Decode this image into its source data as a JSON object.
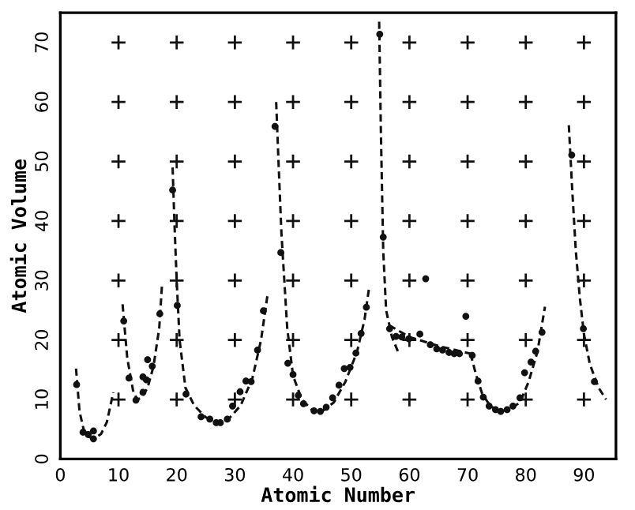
{
  "chart_data": {
    "type": "scatter",
    "xlabel": "Atomic Number",
    "ylabel": "Atomic Volume",
    "xlim": [
      0,
      95.5
    ],
    "ylim": [
      0,
      75
    ],
    "xticks": [
      0,
      10,
      20,
      30,
      40,
      50,
      60,
      70,
      80,
      90
    ],
    "yticks": [
      0,
      10,
      20,
      30,
      40,
      50,
      60,
      70
    ],
    "series": [
      {
        "type": "scatter",
        "color": "#111111",
        "marker": "cross",
        "x": [
          10,
          10,
          10,
          10,
          10,
          10,
          10,
          20,
          20,
          20,
          20,
          20,
          20,
          20,
          30,
          30,
          30,
          30,
          30,
          30,
          30,
          40,
          40,
          40,
          40,
          40,
          40,
          40,
          50,
          50,
          50,
          50,
          50,
          50,
          50,
          60,
          60,
          60,
          60,
          60,
          60,
          60,
          70,
          70,
          70,
          70,
          70,
          70,
          70,
          80,
          80,
          80,
          80,
          80,
          80,
          80,
          90,
          90,
          90,
          90,
          90,
          90,
          90
        ],
        "values": [
          10,
          20,
          30,
          40,
          50,
          60,
          70,
          10,
          20,
          30,
          40,
          50,
          60,
          70,
          10,
          20,
          30,
          40,
          50,
          60,
          70,
          10,
          20,
          30,
          40,
          50,
          60,
          70,
          10,
          20,
          30,
          40,
          50,
          60,
          70,
          10,
          20,
          30,
          40,
          50,
          60,
          70,
          10,
          20,
          30,
          40,
          50,
          60,
          70,
          10,
          20,
          30,
          40,
          50,
          60,
          70,
          10,
          20,
          30,
          40,
          50,
          60,
          70
        ]
      },
      {
        "color": "#111111",
        "marker": "circle",
        "x": [
          2.8,
          3.9,
          4.8,
          5.7,
          5.7,
          10.9,
          11.8,
          13.0,
          14.2,
          14.2,
          14.8,
          15.0,
          15.8,
          17.1,
          19.3,
          20.1,
          21.6,
          24.2,
          25.7,
          26.8,
          27.5,
          28.7,
          29.6,
          30.9,
          31.9,
          32.8,
          33.9,
          34.9,
          36.9,
          37.9,
          39.1,
          40.0,
          40.9,
          41.8,
          43.6,
          44.7,
          45.7,
          46.8,
          47.9,
          48.8,
          49.8,
          50.8,
          51.7,
          52.6,
          54.9,
          55.5,
          56.6,
          57.7,
          58.7,
          59.9,
          61.8,
          62.8,
          63.6,
          64.7,
          65.7,
          66.8,
          67.7,
          68.6,
          69.7,
          70.8,
          71.8,
          72.7,
          73.7,
          74.8,
          75.7,
          76.8,
          77.8,
          79.0,
          79.8,
          80.9,
          81.7,
          82.8,
          87.9,
          89.9,
          91.8
        ],
        "values": [
          12.5,
          4.5,
          4.1,
          4.7,
          3.4,
          23.2,
          13.6,
          9.9,
          11.2,
          13.8,
          13.3,
          16.7,
          15.6,
          24.4,
          45.2,
          25.8,
          10.9,
          7.1,
          6.7,
          6.1,
          6.1,
          6.7,
          8.9,
          11.3,
          13.1,
          13.0,
          18.3,
          24.9,
          55.9,
          34.7,
          16.1,
          14.2,
          10.7,
          9.3,
          8.1,
          8.0,
          8.7,
          10.3,
          12.4,
          15.2,
          15.4,
          17.8,
          21.1,
          25.5,
          71.4,
          37.3,
          21.9,
          20.6,
          20.5,
          20.2,
          21.0,
          30.3,
          19.2,
          18.5,
          18.3,
          17.9,
          17.7,
          17.7,
          24.0,
          17.4,
          13.1,
          10.4,
          8.9,
          8.3,
          8.0,
          8.3,
          8.9,
          10.3,
          14.5,
          16.3,
          18.1,
          21.3,
          51.1,
          21.9,
          13.0
        ]
      },
      {
        "type": "line",
        "color": "#111111",
        "line_style": "dashed",
        "x": [
          2.7,
          3.3,
          4.0,
          5.0,
          5.7,
          7.0,
          8.0,
          9.1
        ],
        "values": [
          15.2,
          8.0,
          5.0,
          3.7,
          3.4,
          4.2,
          6.2,
          11.2
        ]
      },
      {
        "type": "line",
        "color": "#111111",
        "line_style": "dashed",
        "x": [
          10.7,
          11.5,
          12.5,
          13.2,
          14.0,
          15.0,
          16.0,
          17.0,
          17.5
        ],
        "values": [
          26.0,
          17.0,
          11.5,
          10.0,
          10.3,
          12.0,
          15.5,
          22.0,
          29.6
        ]
      },
      {
        "type": "line",
        "color": "#111111",
        "line_style": "dashed",
        "x": [
          19.3,
          19.6,
          20.0,
          20.5,
          21.5,
          23.0,
          25.0,
          27.0,
          29.0,
          31.0,
          33.0,
          34.5,
          35.6
        ],
        "values": [
          49.0,
          40.0,
          30.0,
          20.0,
          12.0,
          9.0,
          7.0,
          6.2,
          6.8,
          9.0,
          13.5,
          20.0,
          27.5
        ]
      },
      {
        "type": "line",
        "color": "#111111",
        "line_style": "dashed",
        "x": [
          37.1,
          37.5,
          38.0,
          39.0,
          40.0,
          41.5,
          43.5,
          45.0,
          47.0,
          49.0,
          51.0,
          52.3,
          53.1
        ],
        "values": [
          60.0,
          50.0,
          38.0,
          22.0,
          14.0,
          10.0,
          8.0,
          8.0,
          9.5,
          13.0,
          18.0,
          23.5,
          29.0
        ]
      },
      {
        "type": "line",
        "color": "#111111",
        "line_style": "dashed",
        "x": [
          54.8,
          55.1,
          55.5,
          56.0,
          57.0,
          58.1
        ],
        "values": [
          73.5,
          55.0,
          35.0,
          25.0,
          20.5,
          17.9
        ]
      },
      {
        "type": "line",
        "color": "#111111",
        "line_style": "dashed",
        "x": [
          56.5,
          60.0,
          65.0,
          70.5
        ],
        "values": [
          22.5,
          20.5,
          19.0,
          17.7
        ]
      },
      {
        "type": "line",
        "color": "#111111",
        "line_style": "dashed",
        "x": [
          70.5,
          71.5,
          72.5,
          73.5,
          75.0,
          77.0,
          79.0,
          80.5,
          82.0,
          83.3
        ],
        "values": [
          17.7,
          14.0,
          11.0,
          9.5,
          8.0,
          8.2,
          9.5,
          13.0,
          18.0,
          25.6
        ]
      },
      {
        "type": "line",
        "color": "#111111",
        "line_style": "dashed",
        "x": [
          87.4,
          88.0,
          88.6,
          89.3,
          90.0,
          91.0,
          92.5,
          93.8
        ],
        "values": [
          56.1,
          45.0,
          35.0,
          27.0,
          21.0,
          16.0,
          12.0,
          10.0
        ]
      }
    ]
  }
}
